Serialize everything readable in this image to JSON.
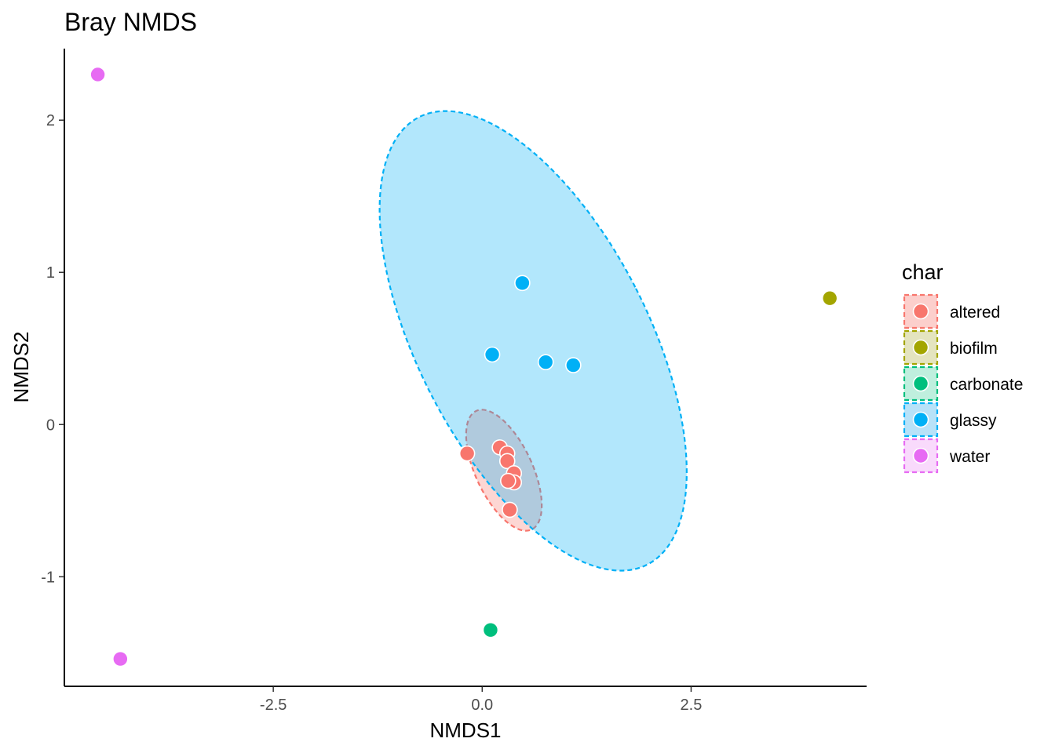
{
  "chart_data": {
    "type": "scatter",
    "title": "Bray NMDS",
    "xlabel": "NMDS1",
    "ylabel": "NMDS2",
    "xlim": [
      -5.0,
      4.6
    ],
    "ylim": [
      -1.72,
      2.47
    ],
    "xticks": [
      -2.5,
      0,
      2.5
    ],
    "xtick_labels": [
      "-2.5",
      "0.0",
      "2.5"
    ],
    "yticks": [
      -1,
      0,
      1,
      2
    ],
    "ytick_labels": [
      "-1",
      "0",
      "1",
      "2"
    ],
    "grid": false,
    "legend": {
      "title": "char",
      "placement": "right"
    },
    "series": [
      {
        "name": "altered",
        "color": "#F8766D",
        "fill": "#FCCFCC",
        "points": [
          [
            -0.18,
            -0.19
          ],
          [
            0.21,
            -0.15
          ],
          [
            0.3,
            -0.19
          ],
          [
            0.3,
            -0.24
          ],
          [
            0.38,
            -0.32
          ],
          [
            0.38,
            -0.38
          ],
          [
            0.31,
            -0.37
          ],
          [
            0.33,
            -0.56
          ]
        ],
        "ellipse": {
          "cx": 0.26,
          "cy": -0.3,
          "rx": 0.34,
          "ry": 0.43,
          "rotation": -25
        }
      },
      {
        "name": "biofilm",
        "color": "#A3A500",
        "fill": "#E4E4BF",
        "points": [
          [
            4.16,
            0.83
          ]
        ]
      },
      {
        "name": "carbonate",
        "color": "#00BF7D",
        "fill": "#BFEFDE",
        "points": [
          [
            0.1,
            -1.35
          ]
        ]
      },
      {
        "name": "glassy",
        "color": "#00B0F6",
        "fill": "#B8E2F8",
        "points": [
          [
            0.48,
            0.93
          ],
          [
            0.12,
            0.46
          ],
          [
            0.76,
            0.41
          ],
          [
            1.09,
            0.39
          ]
        ],
        "ellipse": {
          "cx": 0.61,
          "cy": 0.55,
          "rx": 1.38,
          "ry": 1.65,
          "rotation": -27
        }
      },
      {
        "name": "water",
        "color": "#E76BF3",
        "fill": "#F9DAFC",
        "points": [
          [
            -4.6,
            2.3
          ],
          [
            -4.33,
            -1.54
          ]
        ]
      }
    ]
  }
}
